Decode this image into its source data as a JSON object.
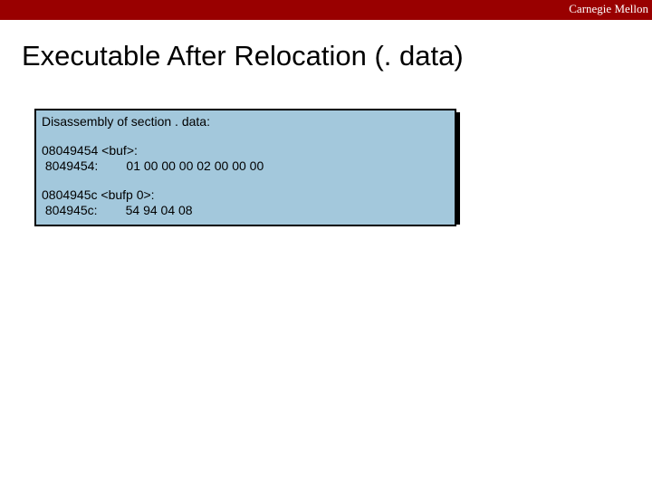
{
  "banner": {
    "label": "Carnegie Mellon",
    "bg_color": "#990000",
    "text_color": "#ffffff"
  },
  "title": "Executable After Relocation (. data)",
  "codebox": {
    "bg_color": "#a3c8dc",
    "border_color": "#000000",
    "shadow_color": "#000000",
    "header": "Disassembly of section . data:",
    "symbols": [
      {
        "addr_label": "08049454 <buf>:",
        "offset": " 8049454:",
        "bytes": "01 00 00 00 02 00 00 00"
      },
      {
        "addr_label": "0804945c <bufp 0>:",
        "offset": " 804945c:",
        "bytes": "54 94 04 08"
      }
    ]
  }
}
